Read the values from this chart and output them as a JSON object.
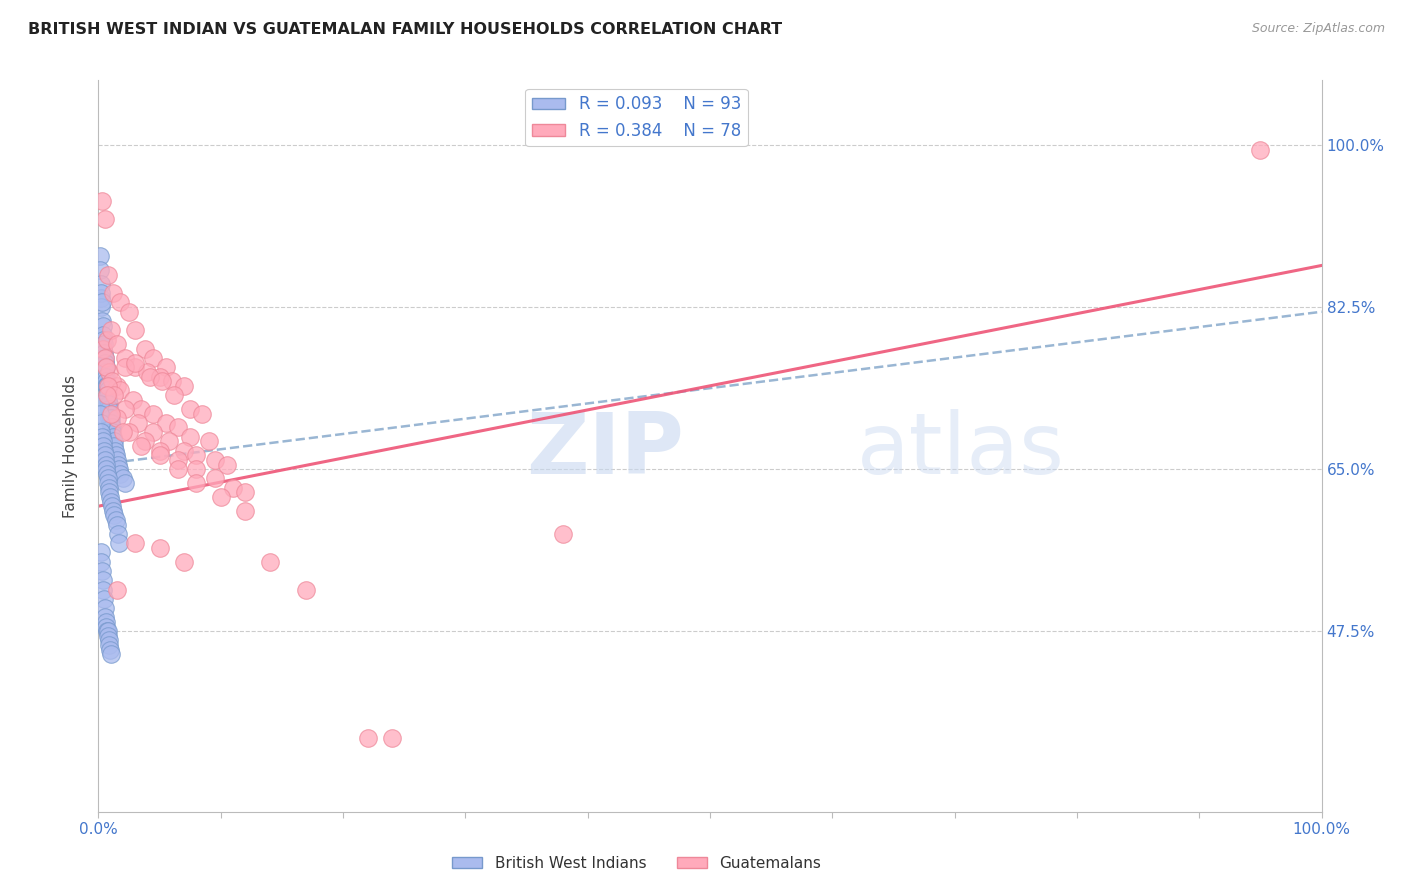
{
  "title": "BRITISH WEST INDIAN VS GUATEMALAN FAMILY HOUSEHOLDS CORRELATION CHART",
  "source": "Source: ZipAtlas.com",
  "ylabel": "Family Households",
  "y_tick_labels": [
    "47.5%",
    "65.0%",
    "82.5%",
    "100.0%"
  ],
  "y_tick_values": [
    47.5,
    65.0,
    82.5,
    100.0
  ],
  "legend_label1": "British West Indians",
  "legend_label2": "Guatemalans",
  "R1": "0.093",
  "N1": "93",
  "R2": "0.384",
  "N2": "78",
  "color_blue_fill": "#AABBEE",
  "color_blue_edge": "#7799CC",
  "color_pink_fill": "#FFAABB",
  "color_pink_edge": "#EE8899",
  "color_blue_line": "#88AACC",
  "color_pink_line": "#EE5577",
  "color_title": "#222222",
  "color_axis_blue": "#4477CC",
  "color_source": "#999999",
  "xlim": [
    0,
    100
  ],
  "ylim": [
    28,
    107
  ],
  "blue_x": [
    0.1,
    0.15,
    0.2,
    0.2,
    0.25,
    0.25,
    0.3,
    0.3,
    0.35,
    0.35,
    0.4,
    0.4,
    0.45,
    0.45,
    0.5,
    0.5,
    0.55,
    0.55,
    0.6,
    0.6,
    0.65,
    0.65,
    0.7,
    0.7,
    0.75,
    0.75,
    0.8,
    0.8,
    0.85,
    0.85,
    0.9,
    0.9,
    0.95,
    0.95,
    1.0,
    1.0,
    1.05,
    1.1,
    1.15,
    1.2,
    1.25,
    1.3,
    1.35,
    1.4,
    1.5,
    1.6,
    1.7,
    1.8,
    2.0,
    2.2,
    0.1,
    0.15,
    0.2,
    0.25,
    0.3,
    0.35,
    0.4,
    0.45,
    0.5,
    0.55,
    0.6,
    0.65,
    0.7,
    0.75,
    0.8,
    0.85,
    0.9,
    0.95,
    1.0,
    1.1,
    1.2,
    1.3,
    1.4,
    1.5,
    1.6,
    1.7,
    0.2,
    0.25,
    0.3,
    0.35,
    0.4,
    0.45,
    0.5,
    0.55,
    0.6,
    0.65,
    0.7,
    0.75,
    0.8,
    0.85,
    0.9,
    0.95,
    1.0
  ],
  "blue_y": [
    88.0,
    86.5,
    85.0,
    83.5,
    84.0,
    82.5,
    83.0,
    81.0,
    80.5,
    79.5,
    79.0,
    78.0,
    78.5,
    77.5,
    77.0,
    76.5,
    76.5,
    75.5,
    76.0,
    75.0,
    74.5,
    74.0,
    74.0,
    73.0,
    73.5,
    72.5,
    73.0,
    72.0,
    72.0,
    71.5,
    71.5,
    70.5,
    71.0,
    70.0,
    70.5,
    69.5,
    70.0,
    69.5,
    69.0,
    68.5,
    68.0,
    67.5,
    67.0,
    66.5,
    66.0,
    65.5,
    65.0,
    64.5,
    64.0,
    63.5,
    72.0,
    71.0,
    70.0,
    69.0,
    68.5,
    68.0,
    67.5,
    67.0,
    66.5,
    66.0,
    65.5,
    65.0,
    64.5,
    64.0,
    63.5,
    63.0,
    62.5,
    62.0,
    61.5,
    61.0,
    60.5,
    60.0,
    59.5,
    59.0,
    58.0,
    57.0,
    56.0,
    55.0,
    54.0,
    53.0,
    52.0,
    51.0,
    50.0,
    49.0,
    48.5,
    48.0,
    47.5,
    47.5,
    47.0,
    46.5,
    46.0,
    45.5,
    45.0
  ],
  "pink_x": [
    0.3,
    0.5,
    0.8,
    1.2,
    1.8,
    2.5,
    3.0,
    3.8,
    4.5,
    5.5,
    0.4,
    0.7,
    1.0,
    1.5,
    2.2,
    3.0,
    4.0,
    5.0,
    6.0,
    7.0,
    0.5,
    0.9,
    1.5,
    2.2,
    3.0,
    4.2,
    5.2,
    6.2,
    7.5,
    8.5,
    0.6,
    1.1,
    1.8,
    2.8,
    3.5,
    4.5,
    5.5,
    6.5,
    7.5,
    9.0,
    0.8,
    1.3,
    2.2,
    3.2,
    4.5,
    5.8,
    7.0,
    8.0,
    9.5,
    10.5,
    0.7,
    1.5,
    2.5,
    3.8,
    5.0,
    6.5,
    8.0,
    9.5,
    11.0,
    12.0,
    1.0,
    2.0,
    3.5,
    5.0,
    6.5,
    8.0,
    10.0,
    12.0,
    14.0,
    17.0,
    1.5,
    3.0,
    5.0,
    7.0,
    22.0,
    24.0,
    38.0,
    95.0
  ],
  "pink_y": [
    94.0,
    92.0,
    86.0,
    84.0,
    83.0,
    82.0,
    80.0,
    78.0,
    77.0,
    76.0,
    78.0,
    79.0,
    80.0,
    78.5,
    77.0,
    76.0,
    75.5,
    75.0,
    74.5,
    74.0,
    77.0,
    75.5,
    74.0,
    76.0,
    76.5,
    75.0,
    74.5,
    73.0,
    71.5,
    71.0,
    76.0,
    74.5,
    73.5,
    72.5,
    71.5,
    71.0,
    70.0,
    69.5,
    68.5,
    68.0,
    74.0,
    73.0,
    71.5,
    70.0,
    69.0,
    68.0,
    67.0,
    66.5,
    66.0,
    65.5,
    73.0,
    70.5,
    69.0,
    68.0,
    67.0,
    66.0,
    65.0,
    64.0,
    63.0,
    62.5,
    71.0,
    69.0,
    67.5,
    66.5,
    65.0,
    63.5,
    62.0,
    60.5,
    55.0,
    52.0,
    52.0,
    57.0,
    56.5,
    55.0,
    36.0,
    36.0,
    58.0,
    99.5
  ],
  "blue_trend_x0": 0,
  "blue_trend_y0": 65.5,
  "blue_trend_x1": 100,
  "blue_trend_y1": 82.0,
  "pink_trend_x0": 0,
  "pink_trend_y0": 61.0,
  "pink_trend_x1": 100,
  "pink_trend_y1": 87.0
}
